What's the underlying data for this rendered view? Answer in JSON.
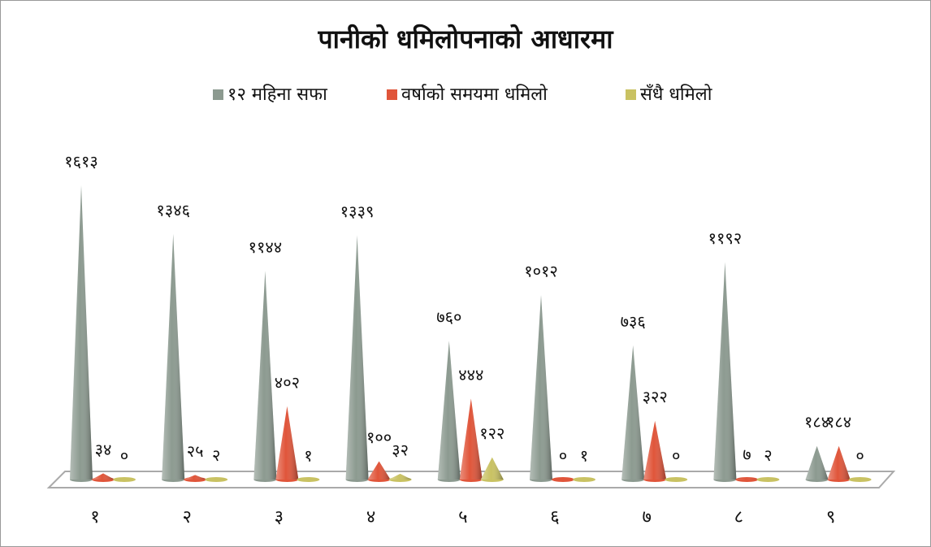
{
  "chart_data": {
    "type": "cone",
    "title": "पानीको धमिलोपनाको आधारमा",
    "categories": [
      "१",
      "२",
      "३",
      "४",
      "५",
      "६",
      "७",
      "८",
      "९"
    ],
    "series": [
      {
        "name": "१२ महिना सफा",
        "color": "#8c9a90",
        "values": [
          1613,
          1346,
          1144,
          1339,
          760,
          1012,
          736,
          1192,
          184
        ],
        "value_labels": [
          "१६१३",
          "१३४६",
          "११४४",
          "१३३९",
          "७६०",
          "१०१२",
          "७३६",
          "११९२",
          "१८४"
        ]
      },
      {
        "name": "वर्षाको समयमा धमिलो",
        "color": "#e0553a",
        "values": [
          34,
          25,
          402,
          100,
          444,
          0,
          322,
          7,
          184
        ],
        "value_labels": [
          "३४",
          "२५",
          "४०२",
          "१००",
          "४४४",
          "०",
          "३२२",
          "७",
          "१८४"
        ]
      },
      {
        "name": "सँधै धमिलो",
        "color": "#c9c262",
        "values": [
          0,
          2,
          1,
          32,
          122,
          1,
          0,
          2,
          0
        ],
        "value_labels": [
          "०",
          "२",
          "१",
          "३२",
          "१२२",
          "१",
          "०",
          "२",
          "०"
        ]
      }
    ]
  }
}
